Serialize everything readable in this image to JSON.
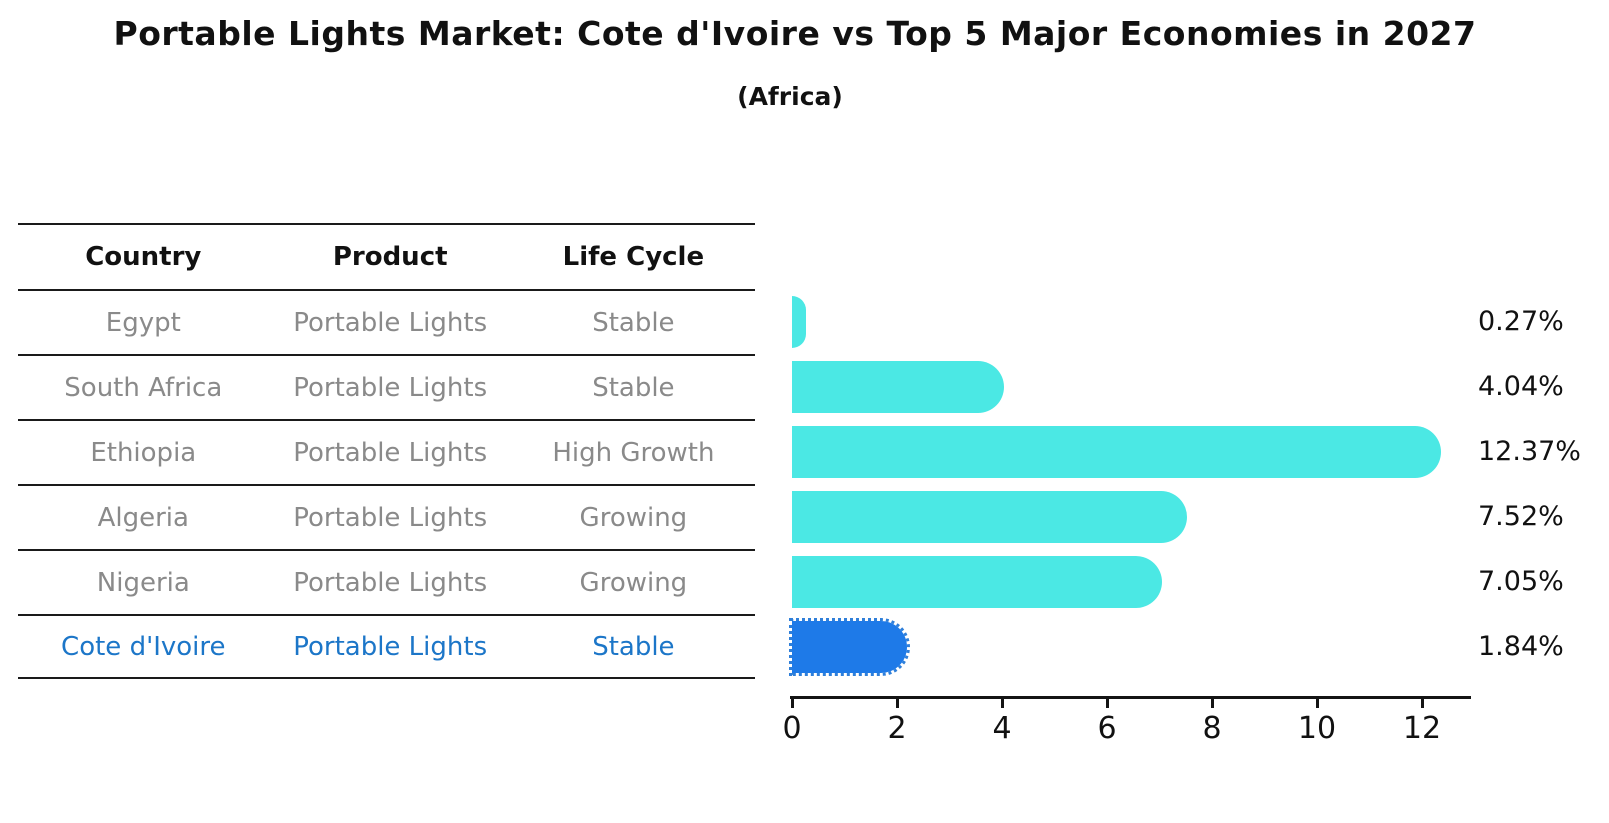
{
  "title": "Portable Lights Market: Cote d'Ivoire vs Top 5 Major Economies in 2027",
  "subtitle": "(Africa)",
  "table": {
    "headers": [
      "Country",
      "Product",
      "Life Cycle"
    ],
    "rows": [
      {
        "country": "Egypt",
        "product": "Portable Lights",
        "life_cycle": "Stable"
      },
      {
        "country": "South Africa",
        "product": "Portable Lights",
        "life_cycle": "Stable"
      },
      {
        "country": "Ethiopia",
        "product": "Portable Lights",
        "life_cycle": "High Growth"
      },
      {
        "country": "Algeria",
        "product": "Portable Lights",
        "life_cycle": "Growing"
      },
      {
        "country": "Nigeria",
        "product": "Portable Lights",
        "life_cycle": "Growing"
      },
      {
        "country": "Cote d'Ivoire",
        "product": "Portable Lights",
        "life_cycle": "Stable"
      }
    ]
  },
  "chart_data": {
    "type": "bar",
    "orientation": "horizontal",
    "categories": [
      "Egypt",
      "South Africa",
      "Ethiopia",
      "Algeria",
      "Nigeria",
      "Cote d'Ivoire"
    ],
    "values": [
      0.27,
      4.04,
      12.37,
      7.52,
      7.05,
      1.84
    ],
    "value_labels": [
      "0.27%",
      "4.04%",
      "12.37%",
      "7.52%",
      "7.05%",
      "1.84%"
    ],
    "xticks": [
      0,
      2,
      4,
      6,
      8,
      10,
      12
    ],
    "xlim": [
      0,
      13
    ],
    "grid": false,
    "legend": "none",
    "highlight_index": 5,
    "bar_color": "#4BE8E4",
    "highlight_bar_color": "#1E7AE8",
    "highlight_text_color": "#1C76C8"
  }
}
